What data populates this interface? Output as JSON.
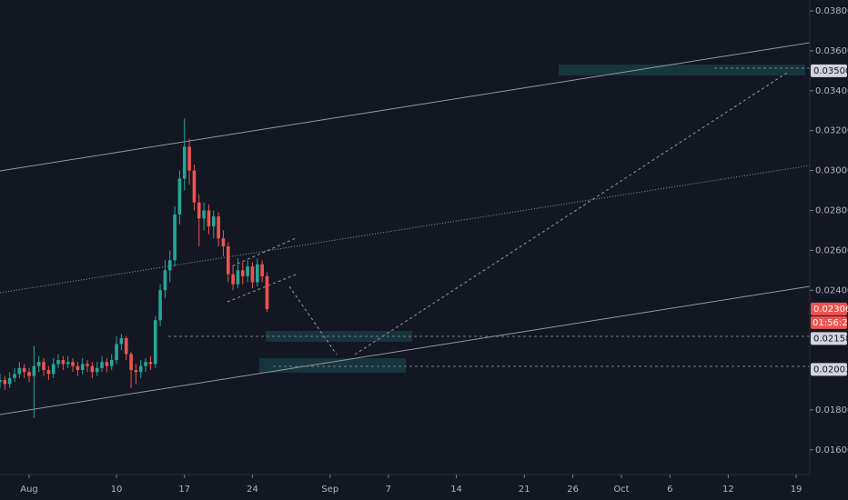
{
  "chart_data": {
    "type": "candlestick",
    "x": [
      -3,
      -2.5,
      -2,
      -1.5,
      -1,
      -0.5,
      0,
      0.5,
      1,
      1.5,
      2,
      2.5,
      3,
      3.5,
      4,
      4.5,
      5,
      5.5,
      6,
      6.5,
      7,
      7.5,
      8,
      8.5,
      9,
      9.5,
      10,
      10.5,
      11,
      11.5,
      12,
      12.5,
      13,
      13.5,
      14,
      14.5,
      15,
      15.5,
      16,
      16.5,
      17,
      17.5,
      18,
      18.5,
      19,
      19.5,
      20,
      20.5,
      21,
      21.5,
      22,
      22.5,
      23,
      23.5,
      24,
      24.5
    ],
    "open": [
      0.0194,
      0.0195,
      0.0193,
      0.0196,
      0.0198,
      0.0201,
      0.0199,
      0.0197,
      0.0202,
      0.0204,
      0.02,
      0.0198,
      0.0203,
      0.0205,
      0.0203,
      0.0204,
      0.0202,
      0.02,
      0.0203,
      0.0202,
      0.0199,
      0.0201,
      0.0204,
      0.0202,
      0.0205,
      0.0213,
      0.0216,
      0.0208,
      0.02,
      0.0199,
      0.0202,
      0.0204,
      0.0203,
      0.0225,
      0.024,
      0.025,
      0.0255,
      0.0278,
      0.0296,
      0.0312,
      0.03,
      0.0284,
      0.0276,
      0.028,
      0.0272,
      0.0277,
      0.0266,
      0.0262,
      0.0248,
      0.0243,
      0.025,
      0.0247,
      0.0252,
      0.0244,
      0.0253,
      0.0247
    ],
    "high": [
      0.0198,
      0.0197,
      0.0199,
      0.0201,
      0.0204,
      0.0203,
      0.0201,
      0.0212,
      0.0207,
      0.0206,
      0.0202,
      0.0206,
      0.0208,
      0.0207,
      0.0207,
      0.0206,
      0.0204,
      0.0206,
      0.0205,
      0.0204,
      0.0204,
      0.0207,
      0.0206,
      0.0208,
      0.0217,
      0.0218,
      0.0217,
      0.0209,
      0.0203,
      0.0205,
      0.0206,
      0.0207,
      0.0227,
      0.0243,
      0.0255,
      0.026,
      0.0282,
      0.03,
      0.0326,
      0.0316,
      0.0303,
      0.0288,
      0.0284,
      0.0283,
      0.028,
      0.0279,
      0.027,
      0.0264,
      0.0252,
      0.0256,
      0.0254,
      0.0255,
      0.0254,
      0.0256,
      0.0255,
      0.0249
    ],
    "low": [
      0.0191,
      0.019,
      0.0191,
      0.0194,
      0.0196,
      0.0196,
      0.0194,
      0.0176,
      0.0199,
      0.0197,
      0.0195,
      0.0196,
      0.0201,
      0.02,
      0.0201,
      0.0199,
      0.0197,
      0.0198,
      0.0199,
      0.0196,
      0.0197,
      0.0199,
      0.0199,
      0.02,
      0.0203,
      0.021,
      0.0205,
      0.0191,
      0.0193,
      0.0196,
      0.0199,
      0.02,
      0.0201,
      0.0222,
      0.0236,
      0.0244,
      0.0252,
      0.0273,
      0.029,
      0.0293,
      0.028,
      0.0262,
      0.027,
      0.0268,
      0.0266,
      0.0262,
      0.0257,
      0.0244,
      0.024,
      0.0241,
      0.0243,
      0.0244,
      0.0241,
      0.0242,
      0.0244,
      0.0229
    ],
    "close": [
      0.0195,
      0.0193,
      0.0196,
      0.0198,
      0.0201,
      0.0199,
      0.0197,
      0.0202,
      0.0204,
      0.02,
      0.0198,
      0.0203,
      0.0205,
      0.0203,
      0.0204,
      0.0202,
      0.02,
      0.0203,
      0.0202,
      0.0199,
      0.0201,
      0.0204,
      0.0202,
      0.0205,
      0.0213,
      0.0216,
      0.0208,
      0.02,
      0.0199,
      0.0202,
      0.0204,
      0.0203,
      0.0225,
      0.024,
      0.025,
      0.0255,
      0.0278,
      0.0296,
      0.0312,
      0.03,
      0.0284,
      0.0276,
      0.028,
      0.0272,
      0.0277,
      0.0266,
      0.0262,
      0.0248,
      0.0243,
      0.025,
      0.0247,
      0.0252,
      0.0244,
      0.0253,
      0.0247,
      0.02306
    ],
    "up_color": "#26a69a",
    "down_color": "#ef5350",
    "xlim": [
      -3,
      80.4
    ],
    "xticks": [
      {
        "value": 0,
        "label": "Aug"
      },
      {
        "value": 9,
        "label": "10"
      },
      {
        "value": 16,
        "label": "17"
      },
      {
        "value": 23,
        "label": "24"
      },
      {
        "value": 31,
        "label": "Sep"
      },
      {
        "value": 37,
        "label": "7"
      },
      {
        "value": 44,
        "label": "14"
      },
      {
        "value": 51,
        "label": "21"
      },
      {
        "value": 56,
        "label": "26"
      },
      {
        "value": 61,
        "label": "Oct"
      },
      {
        "value": 66,
        "label": "6"
      },
      {
        "value": 72,
        "label": "12"
      },
      {
        "value": 79,
        "label": "19"
      }
    ],
    "ylim": [
      0.01476,
      0.03855
    ],
    "yticks": [
      {
        "value": 0.038,
        "label": "0.03800"
      },
      {
        "value": 0.036,
        "label": "0.03600"
      },
      {
        "value": 0.034,
        "label": "0.03400"
      },
      {
        "value": 0.032,
        "label": "0.03200"
      },
      {
        "value": 0.03,
        "label": "0.03000"
      },
      {
        "value": 0.028,
        "label": "0.02800"
      },
      {
        "value": 0.026,
        "label": "0.02600"
      },
      {
        "value": 0.024,
        "label": "0.02400"
      },
      {
        "value": 0.018,
        "label": "0.01800"
      },
      {
        "value": 0.016,
        "label": "0.01600"
      }
    ],
    "price_markers": [
      {
        "value": 0.035,
        "label": "0.03500",
        "color": "#d1d4dc"
      },
      {
        "value": 0.02306,
        "label": "0.02306",
        "color": "#ef5350"
      },
      {
        "value": 0.02158,
        "label": "0.02158",
        "color": "#d1d4dc"
      },
      {
        "value": 0.02003,
        "label": "0.02003",
        "color": "#d1d4dc"
      }
    ],
    "countdown": "01:56:26"
  }
}
